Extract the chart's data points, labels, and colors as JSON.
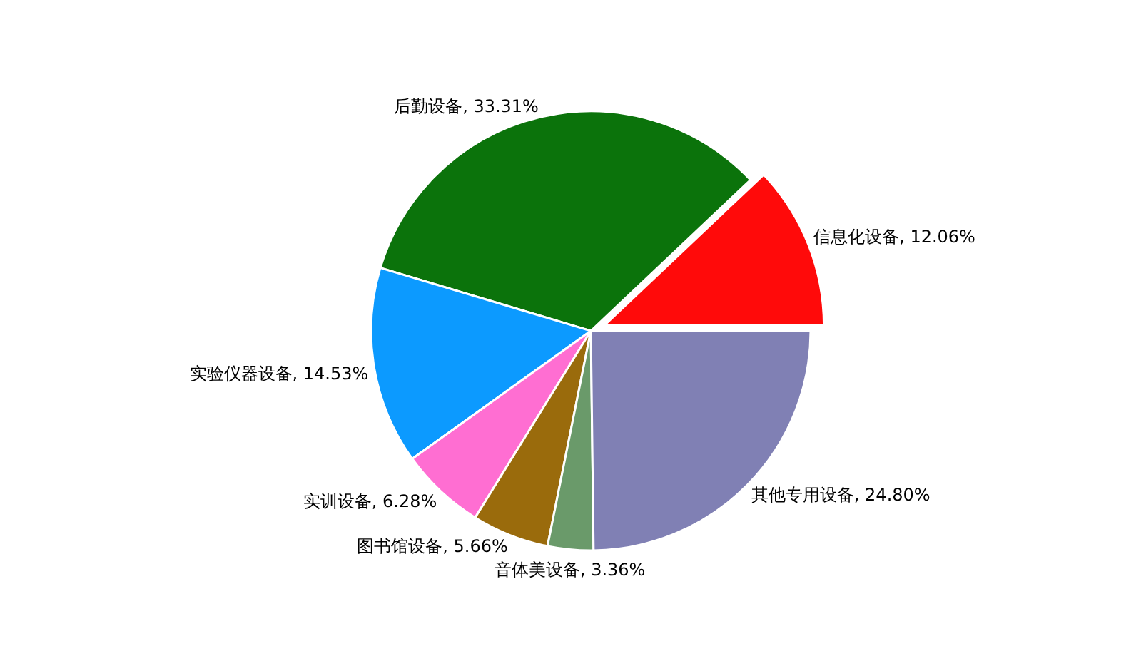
{
  "chart_data": {
    "type": "pie",
    "categories": [
      "信息化设备",
      "后勤设备",
      "实验仪器设备",
      "实训设备",
      "图书馆设备",
      "音体美设备",
      "其他专用设备"
    ],
    "values": [
      12.06,
      33.31,
      14.53,
      6.28,
      5.66,
      3.36,
      24.8
    ],
    "colors": [
      "#ff0a0a",
      "#0b730b",
      "#0c9aff",
      "#ff6ed2",
      "#9a6b0c",
      "#6a9a6a",
      "#8080b4"
    ],
    "value_labels": [
      "12.06%",
      "33.31%",
      "14.53%",
      "6.28%",
      "5.66%",
      "3.36%",
      "24.80%"
    ]
  }
}
